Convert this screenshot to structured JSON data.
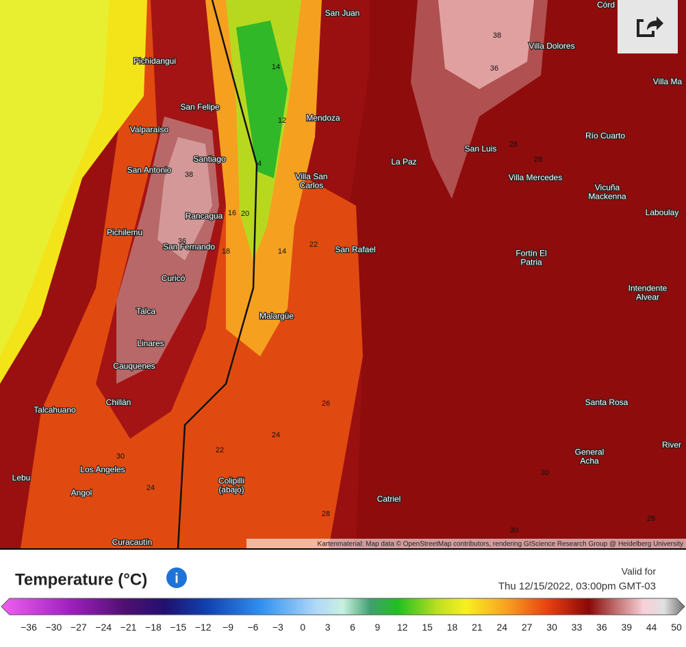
{
  "map": {
    "cities": [
      "San Juan",
      "Córd",
      "Villa Dolores",
      "Villa Ma",
      "Pichidangui",
      "San Felipe",
      "Mendoza",
      "Valparaíso",
      "Río Cuarto",
      "Santiago",
      "La Paz",
      "San Luis",
      "San Antonio",
      "Villa San\nCarlos",
      "Villa Mercedes",
      "Vicuña\nMackenna",
      "Laboulay",
      "Rancagua",
      "Pichilemu",
      "San Fernando",
      "San Rafael",
      "Fortín El\nPatria",
      "Curicó",
      "Intendente\nAlvear",
      "Talca",
      "Malargüe",
      "Linares",
      "Cauquenes",
      "Santa Rosa",
      "Chillán",
      "Talcahuano",
      "River",
      "General\nAcha",
      "Los Angeles",
      "Lebu",
      "Colipilli\n(abajo)",
      "Angol",
      "Catriel",
      "Curacautín"
    ],
    "contours": [
      "38",
      "36",
      "14",
      "12",
      "28",
      "28",
      "4",
      "38",
      "16",
      "20",
      "36",
      "18",
      "14",
      "22",
      "26",
      "24",
      "22",
      "30",
      "24",
      "28",
      "30",
      "30",
      "28"
    ],
    "attribution": "Kartenmaterial: Map data © OpenStreetMap contributors, rendering GIScience Research Group @ Heidelberg University"
  },
  "legend": {
    "title": "Temperature (°C)",
    "valid_for": [
      "Valid for",
      "Thu 12/15/2022, 03:00pm GMT-03"
    ],
    "ticks": [
      "−36",
      "−30",
      "−27",
      "−24",
      "−21",
      "−18",
      "−15",
      "−12",
      "−9",
      "−6",
      "−3",
      "0",
      "3",
      "6",
      "9",
      "12",
      "15",
      "18",
      "21",
      "24",
      "27",
      "30",
      "33",
      "36",
      "39",
      "44",
      "50"
    ]
  }
}
